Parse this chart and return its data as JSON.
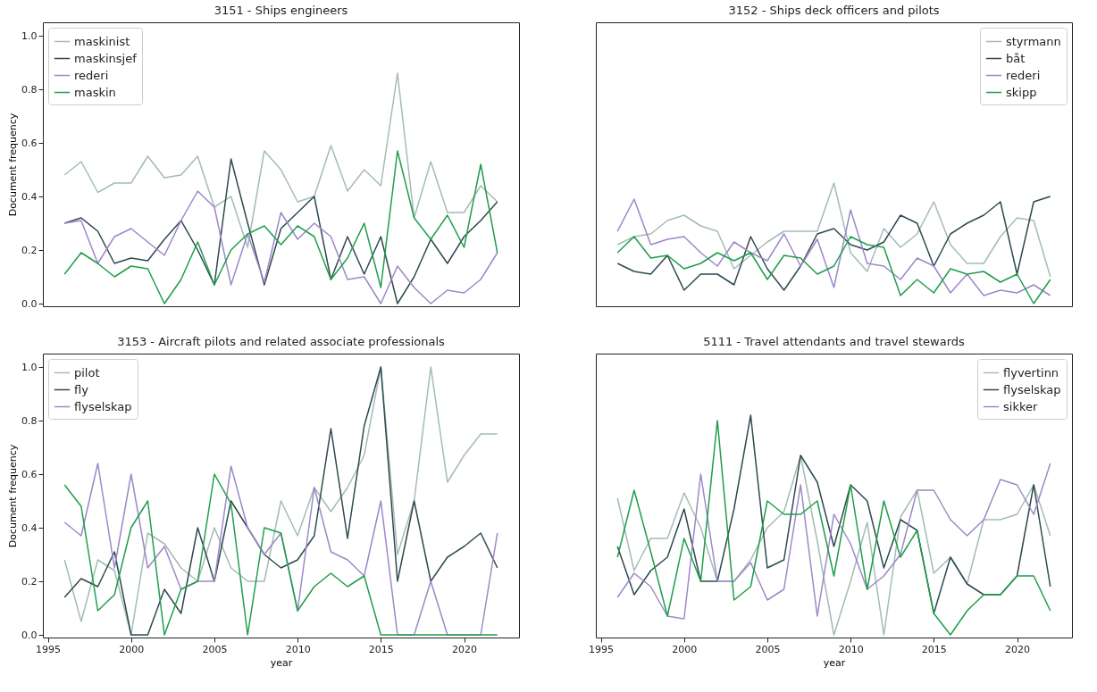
{
  "chart_data": [
    {
      "type": "line",
      "title": "3151 - Ships engineers",
      "ylabel": "Document frequency",
      "x": [
        1996,
        1997,
        1998,
        1999,
        2000,
        2001,
        2002,
        2003,
        2004,
        2005,
        2006,
        2007,
        2008,
        2009,
        2010,
        2011,
        2012,
        2013,
        2014,
        2015,
        2016,
        2017,
        2018,
        2019,
        2020,
        2021,
        2022
      ],
      "xlim": [
        1994.7,
        2023.3
      ],
      "xticks": [
        1995,
        2000,
        2005,
        2010,
        2015,
        2020
      ],
      "ylim": [
        -0.01,
        1.05
      ],
      "yticks": [
        {
          "value": 0,
          "label": "0.0"
        },
        {
          "value": 0.2,
          "label": "0.2"
        },
        {
          "value": 0.4,
          "label": "0.4"
        },
        {
          "value": 0.6,
          "label": "0.6"
        },
        {
          "value": 0.8,
          "label": "0.8"
        },
        {
          "value": 1,
          "label": "1.0"
        }
      ],
      "tick_labels": "y",
      "legend": "top left",
      "series": [
        {
          "name": "maskinist",
          "color": "#a3bcb6",
          "values": [
            0.48,
            0.53,
            0.415,
            0.45,
            0.45,
            0.55,
            0.47,
            0.48,
            0.55,
            0.36,
            0.4,
            0.21,
            0.57,
            0.5,
            0.38,
            0.4,
            0.59,
            0.42,
            0.5,
            0.44,
            0.86,
            0.32,
            0.53,
            0.34,
            0.34,
            0.44,
            0.38
          ]
        },
        {
          "name": "maskinsjef",
          "color": "#2d4a4f",
          "values": [
            0.3,
            0.32,
            0.27,
            0.15,
            0.17,
            0.16,
            0.24,
            0.31,
            0.2,
            0.07,
            0.54,
            0.3,
            0.07,
            0.28,
            0.34,
            0.4,
            0.09,
            0.25,
            0.11,
            0.25,
            0.0,
            0.1,
            0.24,
            0.15,
            0.25,
            0.31,
            0.38
          ]
        },
        {
          "name": "rederi",
          "color": "#9d88c8",
          "values": [
            0.3,
            0.31,
            0.15,
            0.25,
            0.28,
            0.23,
            0.18,
            0.31,
            0.42,
            0.36,
            0.07,
            0.26,
            0.08,
            0.34,
            0.24,
            0.3,
            0.25,
            0.09,
            0.1,
            0.0,
            0.14,
            0.06,
            0.0,
            0.05,
            0.04,
            0.09,
            0.19
          ]
        },
        {
          "name": "maskin",
          "color": "#1f9e4a",
          "values": [
            0.11,
            0.19,
            0.15,
            0.1,
            0.14,
            0.13,
            0.0,
            0.09,
            0.23,
            0.07,
            0.2,
            0.26,
            0.29,
            0.22,
            0.29,
            0.25,
            0.09,
            0.17,
            0.3,
            0.06,
            0.57,
            0.32,
            0.24,
            0.33,
            0.21,
            0.52,
            0.19
          ]
        }
      ]
    },
    {
      "type": "line",
      "title": "3152 - Ships deck officers and pilots",
      "x": [
        1996,
        1997,
        1998,
        1999,
        2000,
        2001,
        2002,
        2003,
        2004,
        2005,
        2006,
        2007,
        2008,
        2009,
        2010,
        2011,
        2012,
        2013,
        2014,
        2015,
        2016,
        2017,
        2018,
        2019,
        2020,
        2021,
        2022
      ],
      "xlim": [
        1994.7,
        2023.3
      ],
      "ylim": [
        -0.01,
        1.05
      ],
      "tick_labels": false,
      "legend": "top right",
      "series": [
        {
          "name": "styrmann",
          "color": "#a3bcb6",
          "values": [
            0.22,
            0.25,
            0.26,
            0.31,
            0.33,
            0.29,
            0.27,
            0.13,
            0.18,
            0.23,
            0.27,
            0.27,
            0.27,
            0.45,
            0.19,
            0.12,
            0.28,
            0.21,
            0.26,
            0.38,
            0.22,
            0.15,
            0.15,
            0.25,
            0.32,
            0.31,
            0.1
          ]
        },
        {
          "name": "båt",
          "color": "#2d4a4f",
          "values": [
            0.15,
            0.12,
            0.11,
            0.18,
            0.05,
            0.11,
            0.11,
            0.07,
            0.25,
            0.13,
            0.05,
            0.14,
            0.26,
            0.28,
            0.22,
            0.2,
            0.23,
            0.33,
            0.3,
            0.14,
            0.26,
            0.3,
            0.33,
            0.38,
            0.11,
            0.38,
            0.4
          ]
        },
        {
          "name": "rederi",
          "color": "#9d88c8",
          "values": [
            0.27,
            0.39,
            0.22,
            0.24,
            0.25,
            0.19,
            0.14,
            0.23,
            0.19,
            0.16,
            0.26,
            0.14,
            0.24,
            0.06,
            0.35,
            0.15,
            0.14,
            0.09,
            0.17,
            0.14,
            0.04,
            0.11,
            0.03,
            0.05,
            0.04,
            0.07,
            0.03
          ]
        },
        {
          "name": "skipp",
          "color": "#1f9e4a",
          "values": [
            0.19,
            0.25,
            0.17,
            0.18,
            0.13,
            0.15,
            0.19,
            0.16,
            0.19,
            0.09,
            0.18,
            0.17,
            0.11,
            0.14,
            0.25,
            0.22,
            0.21,
            0.03,
            0.09,
            0.04,
            0.13,
            0.11,
            0.12,
            0.08,
            0.11,
            0.0,
            0.09
          ]
        }
      ]
    },
    {
      "type": "line",
      "title": "3153 - Aircraft pilots and related associate professionals",
      "xlabel": "year",
      "ylabel": "Document frequency",
      "x": [
        1996,
        1997,
        1998,
        1999,
        2000,
        2001,
        2002,
        2003,
        2004,
        2005,
        2006,
        2007,
        2008,
        2009,
        2010,
        2011,
        2012,
        2013,
        2014,
        2015,
        2016,
        2017,
        2018,
        2019,
        2020,
        2021,
        2022
      ],
      "xlim": [
        1994.7,
        2023.3
      ],
      "xticks": [
        1995,
        2000,
        2005,
        2010,
        2015,
        2020
      ],
      "ylim": [
        -0.01,
        1.05
      ],
      "yticks": [
        {
          "value": 0,
          "label": "0.0"
        },
        {
          "value": 0.2,
          "label": "0.2"
        },
        {
          "value": 0.4,
          "label": "0.4"
        },
        {
          "value": 0.6,
          "label": "0.6"
        },
        {
          "value": 0.8,
          "label": "0.8"
        },
        {
          "value": 1,
          "label": "1.0"
        }
      ],
      "legend": "top left",
      "series": [
        {
          "name": "pilot",
          "color": "#a3bcb6",
          "values": [
            0.28,
            0.05,
            0.28,
            0.24,
            0.0,
            0.38,
            0.34,
            0.25,
            0.2,
            0.4,
            0.25,
            0.2,
            0.2,
            0.5,
            0.37,
            0.55,
            0.46,
            0.55,
            0.67,
            1.0,
            0.3,
            0.5,
            1.0,
            0.57,
            0.67,
            0.75,
            0.75
          ]
        },
        {
          "name": "fly",
          "color": "#2d4a4f",
          "values": [
            0.14,
            0.21,
            0.18,
            0.31,
            0.0,
            0.0,
            0.17,
            0.08,
            0.4,
            0.2,
            0.5,
            0.4,
            0.3,
            0.25,
            0.28,
            0.37,
            0.77,
            0.36,
            0.78,
            1.0,
            0.2,
            0.5,
            0.2,
            0.29,
            0.33,
            0.38,
            0.25
          ]
        },
        {
          "name": "flyselskap",
          "color": "#9d88c8",
          "values": [
            0.42,
            0.37,
            0.64,
            0.25,
            0.6,
            0.25,
            0.33,
            0.17,
            0.2,
            0.2,
            0.63,
            0.4,
            0.3,
            0.38,
            0.09,
            0.55,
            0.31,
            0.28,
            0.22,
            0.5,
            0.0,
            0.0,
            0.2,
            0.0,
            0.0,
            0.0,
            0.38
          ]
        },
        {
          "color": "#1f9e4a",
          "values": [
            0.56,
            0.48,
            0.09,
            0.15,
            0.4,
            0.5,
            0.0,
            0.17,
            0.2,
            0.6,
            0.49,
            0.0,
            0.4,
            0.38,
            0.09,
            0.18,
            0.23,
            0.18,
            0.22,
            0.0,
            0.0,
            0.0,
            0.0,
            0.0,
            0.0,
            0.0,
            0.0
          ]
        }
      ]
    },
    {
      "type": "line",
      "title": "5111 - Travel attendants and travel stewards",
      "xlabel": "year",
      "x": [
        1996,
        1997,
        1998,
        1999,
        2000,
        2001,
        2002,
        2003,
        2004,
        2005,
        2006,
        2007,
        2008,
        2009,
        2010,
        2011,
        2012,
        2013,
        2014,
        2015,
        2016,
        2017,
        2018,
        2019,
        2020,
        2021,
        2022
      ],
      "xlim": [
        1994.7,
        2023.3
      ],
      "xticks": [
        1995,
        2000,
        2005,
        2010,
        2015,
        2020
      ],
      "ylim": [
        -0.01,
        1.05
      ],
      "tick_labels": "x",
      "legend": "top right",
      "series": [
        {
          "name": "flyvertinn",
          "color": "#a3bcb6",
          "values": [
            0.51,
            0.24,
            0.36,
            0.36,
            0.53,
            0.4,
            0.2,
            0.2,
            0.28,
            0.4,
            0.46,
            0.67,
            0.35,
            0.0,
            0.2,
            0.42,
            0.0,
            0.44,
            0.54,
            0.23,
            0.29,
            0.19,
            0.43,
            0.43,
            0.45,
            0.56,
            0.37
          ]
        },
        {
          "name": "flyselskap",
          "color": "#2d4a4f",
          "values": [
            0.33,
            0.15,
            0.24,
            0.29,
            0.47,
            0.2,
            0.2,
            0.47,
            0.82,
            0.25,
            0.28,
            0.67,
            0.57,
            0.33,
            0.56,
            0.5,
            0.25,
            0.43,
            0.39,
            0.08,
            0.29,
            0.19,
            0.15,
            0.15,
            0.22,
            0.56,
            0.18
          ]
        },
        {
          "name": "sikker",
          "color": "#9d88c8",
          "values": [
            0.14,
            0.23,
            0.18,
            0.07,
            0.06,
            0.6,
            0.2,
            0.2,
            0.27,
            0.13,
            0.17,
            0.56,
            0.07,
            0.45,
            0.34,
            0.17,
            0.22,
            0.3,
            0.54,
            0.54,
            0.43,
            0.37,
            0.43,
            0.58,
            0.56,
            0.45,
            0.64
          ]
        },
        {
          "color": "#1f9e4a",
          "values": [
            0.29,
            0.54,
            0.31,
            0.07,
            0.36,
            0.2,
            0.8,
            0.13,
            0.18,
            0.5,
            0.45,
            0.45,
            0.5,
            0.22,
            0.56,
            0.17,
            0.5,
            0.29,
            0.39,
            0.08,
            0.0,
            0.09,
            0.15,
            0.15,
            0.22,
            0.22,
            0.09
          ]
        }
      ]
    }
  ]
}
